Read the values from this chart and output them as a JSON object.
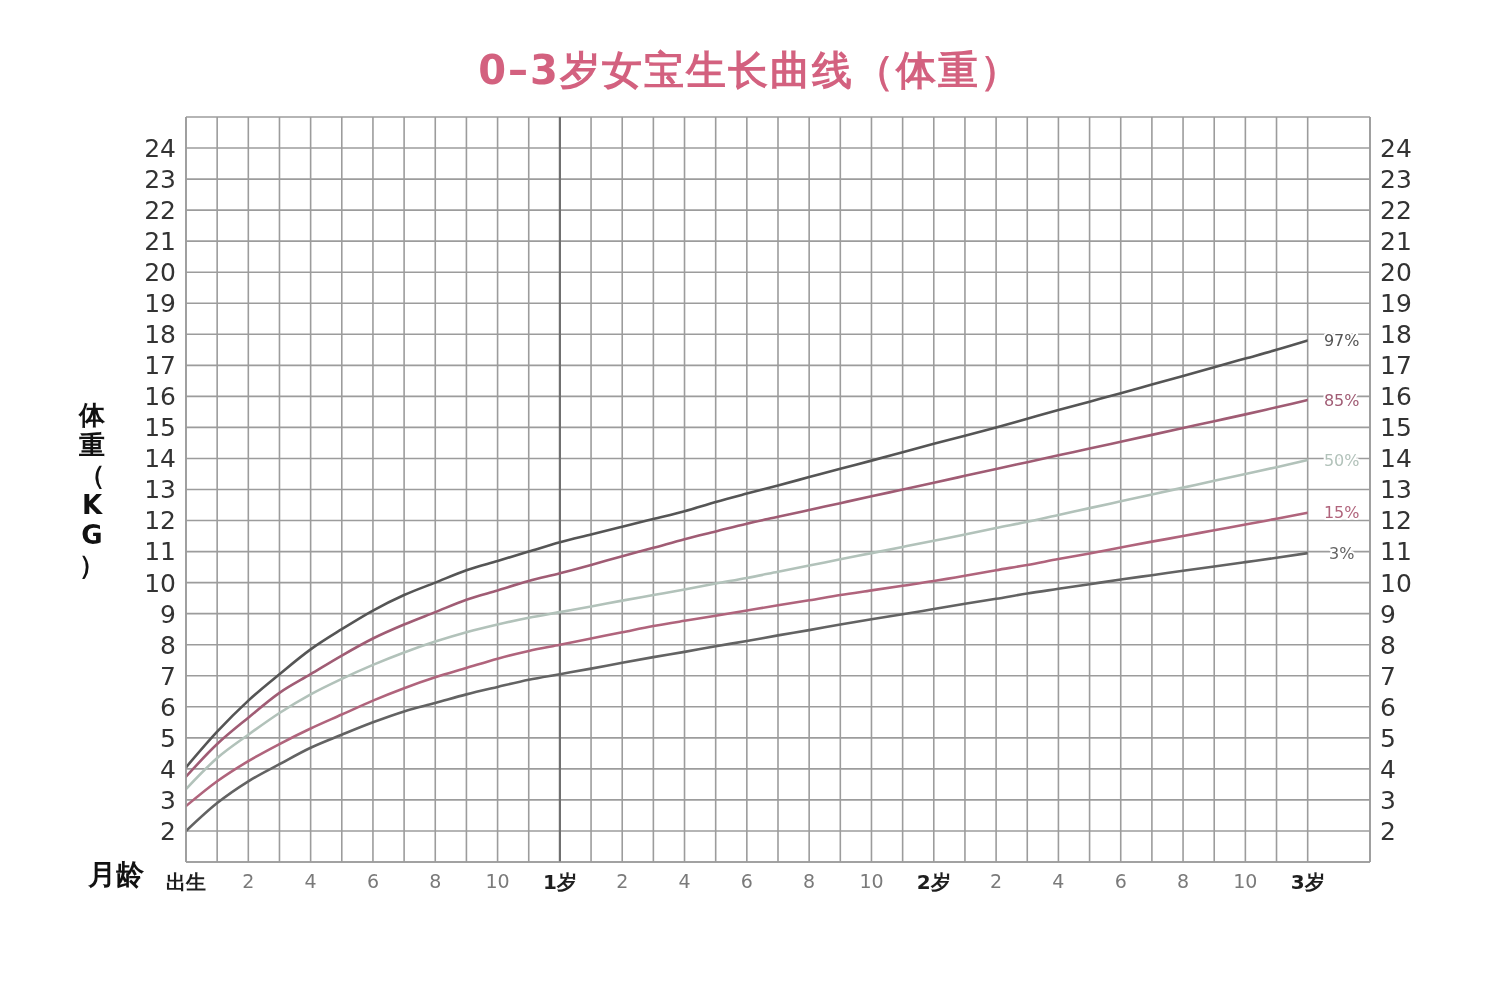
{
  "chart_data": {
    "type": "line",
    "title": "0–3岁女宝生长曲线（体重）",
    "xlabel": "月龄",
    "ylabel": "体重（KG）",
    "categories": [
      "出生",
      null,
      "2",
      null,
      "4",
      null,
      "6",
      null,
      "8",
      null,
      "10",
      null,
      "1岁",
      null,
      "2",
      null,
      "4",
      null,
      "6",
      null,
      "8",
      null,
      "10",
      null,
      "2岁",
      null,
      "2",
      null,
      "4",
      null,
      "6",
      null,
      "8",
      null,
      "10",
      null,
      "3岁"
    ],
    "series": [
      {
        "name": "97%",
        "color": "#555555",
        "values": [
          4.05,
          5.2,
          6.2,
          7.05,
          7.85,
          8.5,
          9.1,
          9.6,
          10.0,
          10.4,
          10.7,
          11.0,
          11.3,
          11.55,
          11.8,
          12.05,
          12.3,
          12.6,
          12.87,
          13.13,
          13.4,
          13.67,
          13.93,
          14.2,
          14.47,
          14.73,
          15.0,
          15.28,
          15.56,
          15.83,
          16.1,
          16.38,
          16.66,
          16.94,
          17.22,
          17.5,
          17.8
        ]
      },
      {
        "name": "85%",
        "color": "#a05c74",
        "values": [
          3.75,
          4.8,
          5.65,
          6.45,
          7.05,
          7.65,
          8.2,
          8.65,
          9.05,
          9.45,
          9.75,
          10.05,
          10.3,
          10.57,
          10.85,
          11.12,
          11.4,
          11.65,
          11.9,
          12.12,
          12.34,
          12.56,
          12.78,
          13.0,
          13.22,
          13.44,
          13.66,
          13.88,
          14.1,
          14.32,
          14.54,
          14.76,
          14.98,
          15.2,
          15.42,
          15.65,
          15.88
        ]
      },
      {
        "name": "50%",
        "color": "#b2c2ba",
        "values": [
          3.35,
          4.35,
          5.1,
          5.8,
          6.4,
          6.9,
          7.35,
          7.75,
          8.1,
          8.4,
          8.65,
          8.87,
          9.05,
          9.23,
          9.42,
          9.6,
          9.78,
          9.97,
          10.15,
          10.35,
          10.55,
          10.75,
          10.95,
          11.15,
          11.35,
          11.55,
          11.76,
          11.96,
          12.18,
          12.4,
          12.62,
          12.84,
          13.06,
          13.28,
          13.5,
          13.72,
          13.95
        ]
      },
      {
        "name": "15%",
        "color": "#b0647c",
        "values": [
          2.8,
          3.6,
          4.25,
          4.8,
          5.3,
          5.75,
          6.2,
          6.6,
          6.95,
          7.25,
          7.55,
          7.8,
          8.0,
          8.2,
          8.4,
          8.6,
          8.77,
          8.93,
          9.1,
          9.27,
          9.43,
          9.6,
          9.75,
          9.9,
          10.05,
          10.22,
          10.4,
          10.57,
          10.76,
          10.94,
          11.13,
          11.32,
          11.5,
          11.69,
          11.87,
          12.06,
          12.25
        ]
      },
      {
        "name": "3%",
        "color": "#636363",
        "values": [
          2.0,
          2.9,
          3.6,
          4.15,
          4.68,
          5.1,
          5.5,
          5.85,
          6.12,
          6.4,
          6.64,
          6.87,
          7.05,
          7.23,
          7.42,
          7.6,
          7.77,
          7.95,
          8.12,
          8.3,
          8.47,
          8.65,
          8.82,
          8.98,
          9.15,
          9.32,
          9.48,
          9.65,
          9.8,
          9.95,
          10.1,
          10.24,
          10.38,
          10.52,
          10.66,
          10.8,
          10.95
        ]
      }
    ],
    "ylim": [
      1,
      25
    ],
    "yticks": [
      2,
      3,
      4,
      5,
      6,
      7,
      8,
      9,
      10,
      11,
      12,
      13,
      14,
      15,
      16,
      17,
      18,
      19,
      20,
      21,
      22,
      23,
      24
    ],
    "y2lim": [
      1,
      25
    ],
    "y2ticks": [
      2,
      3,
      4,
      5,
      6,
      7,
      8,
      9,
      10,
      11,
      12,
      13,
      14,
      15,
      16,
      17,
      18,
      19,
      20,
      21,
      22,
      23,
      24
    ],
    "grid": true,
    "ref_lines": [
      {
        "axis": "x",
        "value": "1岁",
        "color": "#6f6f6f"
      }
    ]
  }
}
